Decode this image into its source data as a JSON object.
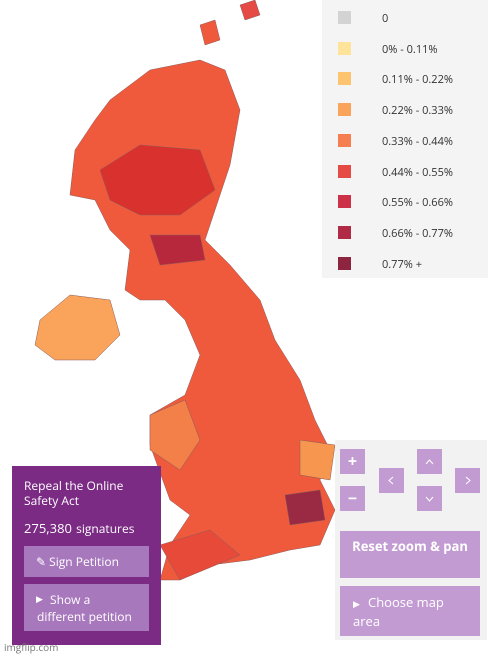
{
  "legend": {
    "items": [
      {
        "label": "0",
        "color": "#d3d3d3"
      },
      {
        "label": "0% - 0.11%",
        "color": "#fde49a"
      },
      {
        "label": "0.11% - 0.22%",
        "color": "#fcc46e"
      },
      {
        "label": "0.22% - 0.33%",
        "color": "#f9a35b"
      },
      {
        "label": "0.33% - 0.44%",
        "color": "#f57f51"
      },
      {
        "label": "0.44% - 0.55%",
        "color": "#e64a45"
      },
      {
        "label": "0.55% - 0.66%",
        "color": "#cc3148"
      },
      {
        "label": "0.66% - 0.77%",
        "color": "#b02a46"
      },
      {
        "label": "0.77% +",
        "color": "#8e2540"
      }
    ]
  },
  "petition": {
    "title": "Repeal the Online Safety Act",
    "count": "275,380",
    "count_unit": "signatures",
    "sign_button": "Sign Petition",
    "other_button": "Show a different petition"
  },
  "controls": {
    "zoom_in": "+",
    "zoom_out": "−",
    "reset": "Reset zoom & pan",
    "choose_area": "Choose map area"
  },
  "watermark": "imgflip.com"
}
